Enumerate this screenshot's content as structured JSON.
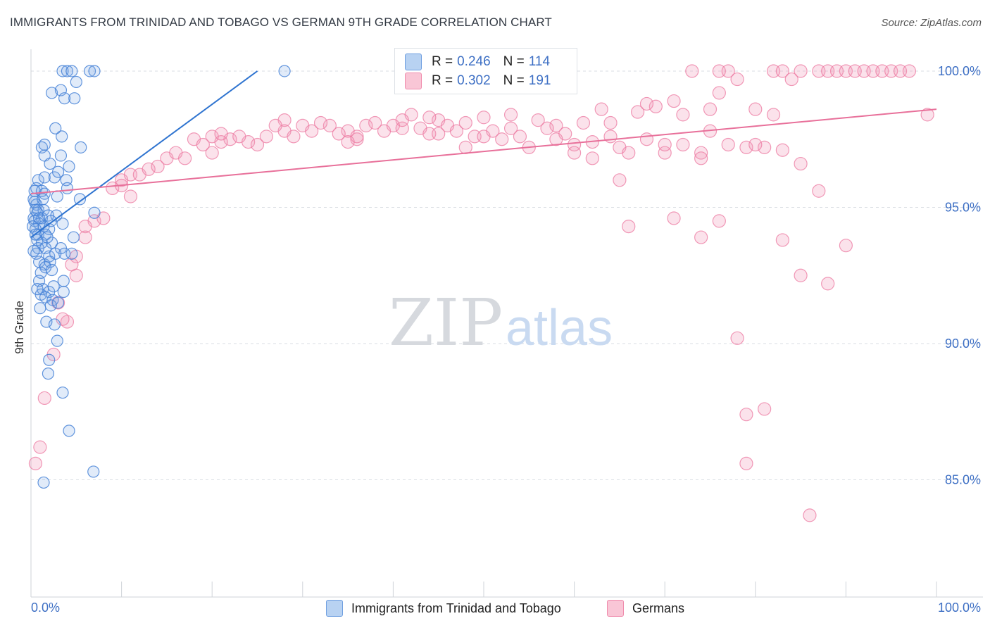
{
  "header": {
    "title": "IMMIGRANTS FROM TRINIDAD AND TOBAGO VS GERMAN 9TH GRADE CORRELATION CHART",
    "source": "Source: ZipAtlas.com"
  },
  "watermark": {
    "zip": "ZIP",
    "atlas": "atlas"
  },
  "legend": {
    "rows": [
      {
        "r_label": "R =",
        "r_value": "0.246",
        "n_label": "N =",
        "n_value": "114",
        "color": "#6f9fe0"
      },
      {
        "r_label": "R =",
        "r_value": "0.302",
        "n_label": "N =",
        "n_value": "191",
        "color": "#f08cad"
      }
    ]
  },
  "bottom_legend": {
    "series1": "Immigrants from Trinidad and Tobago",
    "series2": "Germans"
  },
  "colors": {
    "blue": "#5b8fd8",
    "blue_line": "#2f74d0",
    "pink": "#f08cad",
    "pink_line": "#e8709a",
    "tick_label": "#3d6fc4",
    "grid": "#d9dde3"
  },
  "chart_data": {
    "type": "scatter",
    "title": "IMMIGRANTS FROM TRINIDAD AND TOBAGO VS GERMAN 9TH GRADE CORRELATION CHART",
    "xlabel": "",
    "ylabel": "9th Grade",
    "xlim": [
      0,
      100
    ],
    "ylim": [
      80.7,
      100.8
    ],
    "x_tick_labels": [
      "0.0%",
      "100.0%"
    ],
    "y_ticks": [
      85,
      90,
      95,
      100
    ],
    "y_tick_labels": [
      "85.0%",
      "90.0%",
      "95.0%",
      "100.0%"
    ],
    "grid": true,
    "series": [
      {
        "name": "Immigrants from Trinidad and Tobago",
        "trend": [
          [
            0,
            93.9
          ],
          [
            25,
            100.0
          ]
        ],
        "points": [
          [
            3.5,
            100
          ],
          [
            4.0,
            100
          ],
          [
            4.5,
            100
          ],
          [
            6.5,
            100
          ],
          [
            7.0,
            100
          ],
          [
            28.0,
            100
          ],
          [
            5.0,
            99.6
          ],
          [
            2.3,
            99.2
          ],
          [
            3.3,
            99.3
          ],
          [
            3.7,
            99.0
          ],
          [
            4.8,
            99.0
          ],
          [
            5.5,
            97.2
          ],
          [
            1.2,
            97.2
          ],
          [
            1.5,
            97.3
          ],
          [
            3.4,
            97.6
          ],
          [
            2.7,
            97.9
          ],
          [
            1.5,
            96.9
          ],
          [
            2.1,
            96.6
          ],
          [
            3.3,
            96.9
          ],
          [
            4.2,
            96.5
          ],
          [
            0.8,
            96.0
          ],
          [
            1.5,
            96.1
          ],
          [
            2.6,
            96.1
          ],
          [
            3.0,
            96.3
          ],
          [
            3.9,
            96.0
          ],
          [
            0.6,
            95.7
          ],
          [
            1.2,
            95.6
          ],
          [
            1.5,
            95.5
          ],
          [
            2.9,
            95.4
          ],
          [
            4.0,
            95.7
          ],
          [
            5.4,
            95.3
          ],
          [
            0.4,
            95.2
          ],
          [
            0.6,
            95.1
          ],
          [
            0.8,
            94.9
          ],
          [
            1.4,
            94.9
          ],
          [
            0.7,
            94.8
          ],
          [
            1.2,
            94.6
          ],
          [
            1.9,
            94.7
          ],
          [
            2.8,
            94.7
          ],
          [
            0.3,
            94.6
          ],
          [
            0.4,
            94.5
          ],
          [
            0.9,
            94.4
          ],
          [
            1.4,
            94.3
          ],
          [
            2.0,
            94.2
          ],
          [
            3.5,
            94.4
          ],
          [
            0.5,
            94.2
          ],
          [
            0.8,
            94.0
          ],
          [
            1.6,
            94.0
          ],
          [
            0.7,
            93.8
          ],
          [
            1.2,
            93.7
          ],
          [
            2.3,
            93.7
          ],
          [
            3.3,
            93.5
          ],
          [
            4.7,
            93.9
          ],
          [
            0.8,
            93.5
          ],
          [
            1.6,
            93.5
          ],
          [
            2.0,
            93.2
          ],
          [
            0.9,
            93.0
          ],
          [
            1.5,
            92.9
          ],
          [
            2.1,
            93.0
          ],
          [
            3.7,
            93.3
          ],
          [
            4.5,
            93.3
          ],
          [
            1.6,
            92.8
          ],
          [
            2.3,
            92.7
          ],
          [
            3.6,
            92.3
          ],
          [
            0.9,
            92.3
          ],
          [
            1.3,
            92.0
          ],
          [
            2.0,
            91.9
          ],
          [
            2.5,
            92.1
          ],
          [
            3.6,
            91.9
          ],
          [
            1.1,
            91.8
          ],
          [
            1.6,
            91.7
          ],
          [
            2.4,
            91.6
          ],
          [
            1.0,
            91.3
          ],
          [
            2.2,
            91.4
          ],
          [
            1.7,
            90.8
          ],
          [
            2.6,
            90.7
          ],
          [
            2.9,
            90.1
          ],
          [
            2.0,
            89.4
          ],
          [
            1.9,
            88.9
          ],
          [
            3.5,
            88.2
          ],
          [
            4.2,
            86.8
          ],
          [
            6.9,
            85.3
          ],
          [
            1.4,
            84.9
          ],
          [
            0.3,
            95.3
          ],
          [
            0.5,
            94.9
          ],
          [
            0.2,
            94.3
          ],
          [
            0.6,
            93.3
          ],
          [
            0.7,
            92.0
          ],
          [
            1.3,
            95.3
          ],
          [
            2.2,
            94.5
          ],
          [
            0.9,
            94.6
          ],
          [
            0.4,
            95.6
          ],
          [
            7.0,
            94.8
          ],
          [
            1.8,
            93.9
          ],
          [
            0.3,
            93.4
          ],
          [
            3.0,
            91.5
          ],
          [
            1.1,
            92.6
          ],
          [
            2.7,
            93.3
          ],
          [
            0.5,
            94.0
          ]
        ]
      },
      {
        "name": "Germans",
        "trend": [
          [
            0,
            95.5
          ],
          [
            100,
            98.6
          ]
        ],
        "points": [
          [
            73,
            100
          ],
          [
            76,
            100
          ],
          [
            77,
            100
          ],
          [
            82,
            100
          ],
          [
            83,
            100
          ],
          [
            85,
            100
          ],
          [
            87,
            100
          ],
          [
            88,
            100
          ],
          [
            89,
            100
          ],
          [
            90,
            100
          ],
          [
            91,
            100
          ],
          [
            92,
            100
          ],
          [
            93,
            100
          ],
          [
            94,
            100
          ],
          [
            95,
            100
          ],
          [
            96,
            100
          ],
          [
            97,
            100
          ],
          [
            84,
            99.7
          ],
          [
            78,
            99.7
          ],
          [
            76,
            99.2
          ],
          [
            71,
            98.9
          ],
          [
            69,
            98.7
          ],
          [
            67,
            98.5
          ],
          [
            68,
            98.8
          ],
          [
            63,
            98.6
          ],
          [
            75,
            98.6
          ],
          [
            80,
            98.6
          ],
          [
            82,
            98.4
          ],
          [
            99,
            98.4
          ],
          [
            42,
            98.4
          ],
          [
            45,
            98.2
          ],
          [
            50,
            98.3
          ],
          [
            53,
            98.4
          ],
          [
            56,
            98.2
          ],
          [
            58,
            98.0
          ],
          [
            61,
            98.1
          ],
          [
            64,
            98.1
          ],
          [
            28,
            98.2
          ],
          [
            30,
            98.0
          ],
          [
            33,
            98.0
          ],
          [
            35,
            97.8
          ],
          [
            37,
            98.0
          ],
          [
            40,
            98.0
          ],
          [
            43,
            97.9
          ],
          [
            46,
            98.0
          ],
          [
            48,
            98.1
          ],
          [
            18,
            97.5
          ],
          [
            20,
            97.6
          ],
          [
            22,
            97.5
          ],
          [
            24,
            97.4
          ],
          [
            26,
            97.6
          ],
          [
            28,
            97.8
          ],
          [
            31,
            97.8
          ],
          [
            34,
            97.7
          ],
          [
            36,
            97.5
          ],
          [
            10,
            96.0
          ],
          [
            11,
            96.2
          ],
          [
            12,
            96.2
          ],
          [
            13,
            96.4
          ],
          [
            14,
            96.5
          ],
          [
            15,
            96.8
          ],
          [
            16,
            97.0
          ],
          [
            17,
            96.8
          ],
          [
            19,
            97.3
          ],
          [
            21,
            97.4
          ],
          [
            39,
            97.8
          ],
          [
            41,
            97.9
          ],
          [
            44,
            97.7
          ],
          [
            47,
            97.8
          ],
          [
            49,
            97.6
          ],
          [
            51,
            97.8
          ],
          [
            52,
            97.5
          ],
          [
            54,
            97.6
          ],
          [
            57,
            97.9
          ],
          [
            59,
            97.7
          ],
          [
            60,
            97.3
          ],
          [
            62,
            97.4
          ],
          [
            65,
            97.2
          ],
          [
            66,
            97.0
          ],
          [
            70,
            97.0
          ],
          [
            72,
            97.3
          ],
          [
            74,
            97.0
          ],
          [
            77,
            97.3
          ],
          [
            79,
            97.2
          ],
          [
            81,
            97.2
          ],
          [
            9,
            95.7
          ],
          [
            10,
            95.8
          ],
          [
            11,
            95.4
          ],
          [
            7,
            94.5
          ],
          [
            6,
            94.3
          ],
          [
            8,
            94.6
          ],
          [
            6,
            93.9
          ],
          [
            5,
            93.2
          ],
          [
            4.5,
            92.9
          ],
          [
            5,
            92.5
          ],
          [
            3,
            91.5
          ],
          [
            4,
            90.8
          ],
          [
            2.5,
            89.6
          ],
          [
            1.5,
            88.0
          ],
          [
            1,
            86.2
          ],
          [
            0.5,
            85.6
          ],
          [
            3.5,
            90.9
          ],
          [
            66,
            94.3
          ],
          [
            71,
            94.6
          ],
          [
            74,
            93.9
          ],
          [
            76,
            94.5
          ],
          [
            83,
            93.8
          ],
          [
            87,
            95.6
          ],
          [
            88,
            92.2
          ],
          [
            90,
            93.6
          ],
          [
            85,
            92.5
          ],
          [
            78,
            90.2
          ],
          [
            79,
            87.4
          ],
          [
            81,
            87.6
          ],
          [
            79,
            85.6
          ],
          [
            86,
            83.7
          ],
          [
            85,
            96.6
          ],
          [
            83,
            97.1
          ],
          [
            74,
            96.8
          ],
          [
            70,
            97.3
          ],
          [
            65,
            96.0
          ],
          [
            68,
            97.5
          ],
          [
            75,
            97.8
          ],
          [
            80,
            97.3
          ],
          [
            72,
            98.4
          ],
          [
            64,
            97.6
          ],
          [
            55,
            97.2
          ],
          [
            60,
            97.0
          ],
          [
            62,
            96.8
          ],
          [
            58,
            97.5
          ],
          [
            53,
            97.9
          ],
          [
            50,
            97.6
          ],
          [
            48,
            97.2
          ],
          [
            45,
            97.7
          ],
          [
            44,
            98.3
          ],
          [
            41,
            98.2
          ],
          [
            38,
            98.1
          ],
          [
            36,
            97.6
          ],
          [
            35,
            97.4
          ],
          [
            32,
            98.1
          ],
          [
            29,
            97.6
          ],
          [
            27,
            98.0
          ],
          [
            25,
            97.3
          ],
          [
            23,
            97.6
          ],
          [
            21,
            97.7
          ],
          [
            20,
            97.0
          ]
        ]
      }
    ]
  }
}
